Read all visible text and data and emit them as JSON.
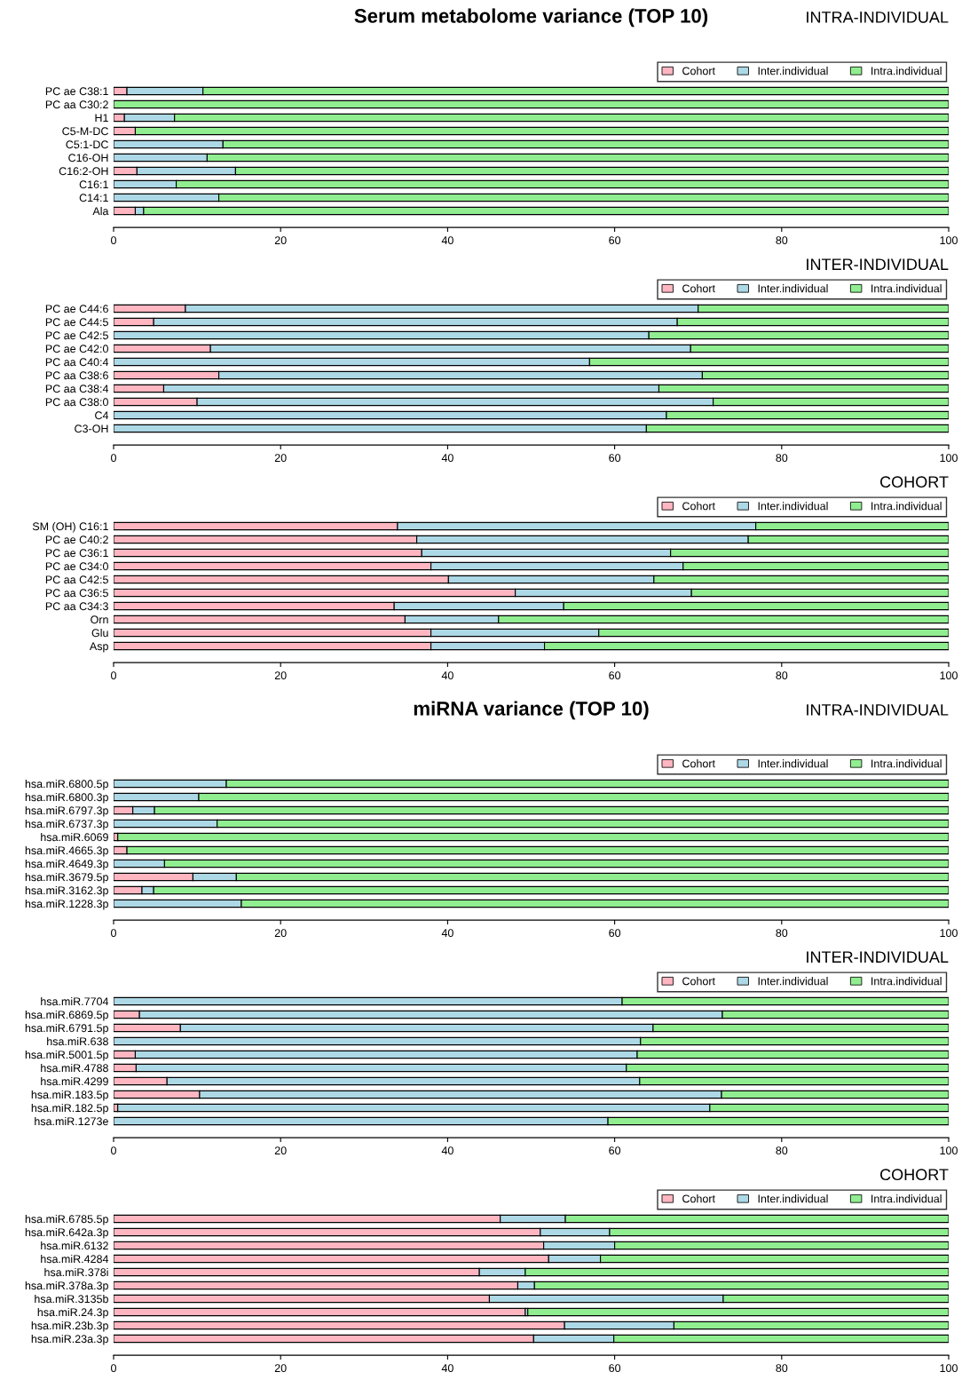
{
  "chart_data": [
    {
      "type": "bar",
      "title": "Serum metabolome variance (TOP 10)",
      "subtitle": "INTRA-INDIVIDUAL",
      "orientation": "horizontal",
      "stacked": true,
      "xlim": [
        0,
        100
      ],
      "xticks": [
        0,
        20,
        40,
        60,
        80,
        100
      ],
      "grid": false,
      "legend": "top right",
      "categories": [
        "PC ae C38:1",
        "PC aa C30:2",
        "H1",
        "C5-M-DC",
        "C5:1-DC",
        "C16-OH",
        "C16:2-OH",
        "C16:1",
        "C14:1",
        "Ala"
      ],
      "series": [
        {
          "name": "Cohort",
          "color": "#ffb6c1",
          "values": [
            1.6,
            0,
            1.3,
            2.6,
            0,
            0,
            2.8,
            0,
            0,
            2.6
          ]
        },
        {
          "name": "Inter.individual",
          "color": "#add8e6",
          "values": [
            9.1,
            0,
            6.0,
            0,
            13.1,
            11.2,
            11.8,
            7.5,
            12.6,
            1.0
          ]
        },
        {
          "name": "Intra.individual",
          "color": "#90ee90",
          "values": [
            89.3,
            100,
            92.7,
            97.4,
            86.9,
            88.8,
            85.4,
            92.5,
            87.4,
            96.4
          ]
        }
      ]
    },
    {
      "type": "bar",
      "subtitle": "INTER-INDIVIDUAL",
      "orientation": "horizontal",
      "stacked": true,
      "xlim": [
        0,
        100
      ],
      "xticks": [
        0,
        20,
        40,
        60,
        80,
        100
      ],
      "grid": false,
      "legend": "top right",
      "categories": [
        "PC ae C44:6",
        "PC ae C44:5",
        "PC ae C42:5",
        "PC ae C42:0",
        "PC aa C40:4",
        "PC aa C38:6",
        "PC aa C38:4",
        "PC aa C38:0",
        "C4",
        "C3-OH"
      ],
      "series": [
        {
          "name": "Cohort",
          "color": "#ffb6c1",
          "values": [
            8.6,
            4.8,
            0,
            11.6,
            0,
            12.6,
            6.0,
            10.0,
            0,
            0
          ]
        },
        {
          "name": "Inter.individual",
          "color": "#add8e6",
          "values": [
            61.4,
            62.7,
            64.1,
            57.5,
            57.0,
            57.9,
            59.3,
            61.8,
            66.2,
            63.8
          ]
        },
        {
          "name": "Intra.individual",
          "color": "#90ee90",
          "values": [
            30.0,
            32.5,
            35.9,
            30.9,
            43.0,
            29.5,
            34.7,
            28.2,
            33.8,
            36.2
          ]
        }
      ]
    },
    {
      "type": "bar",
      "subtitle": "COHORT",
      "orientation": "horizontal",
      "stacked": true,
      "xlim": [
        0,
        100
      ],
      "xticks": [
        0,
        20,
        40,
        60,
        80,
        100
      ],
      "grid": false,
      "legend": "top right",
      "categories": [
        "SM (OH) C16:1",
        "PC ae C40:2",
        "PC ae C36:1",
        "PC ae C34:0",
        "PC aa C42:5",
        "PC aa C36:5",
        "PC aa C34:3",
        "Orn",
        "Glu",
        "Asp"
      ],
      "series": [
        {
          "name": "Cohort",
          "color": "#ffb6c1",
          "values": [
            34.0,
            36.3,
            36.9,
            38.0,
            40.1,
            48.1,
            33.6,
            34.9,
            38.0,
            38.0
          ]
        },
        {
          "name": "Inter.individual",
          "color": "#add8e6",
          "values": [
            42.9,
            39.7,
            29.8,
            30.2,
            24.6,
            21.1,
            20.3,
            11.2,
            20.1,
            13.6
          ]
        },
        {
          "name": "Intra.individual",
          "color": "#90ee90",
          "values": [
            23.1,
            24.0,
            33.3,
            31.8,
            35.3,
            30.8,
            46.1,
            53.9,
            41.9,
            48.4
          ]
        }
      ]
    },
    {
      "type": "bar",
      "title": "miRNA variance (TOP 10)",
      "subtitle": "INTRA-INDIVIDUAL",
      "orientation": "horizontal",
      "stacked": true,
      "xlim": [
        0,
        100
      ],
      "xticks": [
        0,
        20,
        40,
        60,
        80,
        100
      ],
      "grid": false,
      "legend": "top right",
      "categories": [
        "hsa.miR.6800.5p",
        "hsa.miR.6800.3p",
        "hsa.miR.6797.3p",
        "hsa.miR.6737.3p",
        "hsa.miR.6069",
        "hsa.miR.4665.3p",
        "hsa.miR.4649.3p",
        "hsa.miR.3679.5p",
        "hsa.miR.3162.3p",
        "hsa.miR.1228.3p"
      ],
      "series": [
        {
          "name": "Cohort",
          "color": "#ffb6c1",
          "values": [
            0,
            0,
            2.3,
            0,
            0.5,
            1.6,
            0,
            9.5,
            3.4,
            0
          ]
        },
        {
          "name": "Inter.individual",
          "color": "#add8e6",
          "values": [
            13.5,
            10.2,
            2.6,
            12.4,
            0,
            0,
            6.1,
            5.2,
            1.4,
            15.3
          ]
        },
        {
          "name": "Intra.individual",
          "color": "#90ee90",
          "values": [
            86.5,
            89.8,
            95.1,
            87.6,
            99.5,
            98.4,
            93.9,
            85.3,
            95.2,
            84.7
          ]
        }
      ]
    },
    {
      "type": "bar",
      "subtitle": "INTER-INDIVIDUAL",
      "orientation": "horizontal",
      "stacked": true,
      "xlim": [
        0,
        100
      ],
      "xticks": [
        0,
        20,
        40,
        60,
        80,
        100
      ],
      "grid": false,
      "legend": "top right",
      "categories": [
        "hsa.miR.7704",
        "hsa.miR.6869.5p",
        "hsa.miR.6791.5p",
        "hsa.miR.638",
        "hsa.miR.5001.5p",
        "hsa.miR.4788",
        "hsa.miR.4299",
        "hsa.miR.183.5p",
        "hsa.miR.182.5p",
        "hsa.miR.1273e"
      ],
      "series": [
        {
          "name": "Cohort",
          "color": "#ffb6c1",
          "values": [
            0,
            3.1,
            8.0,
            0,
            2.6,
            2.7,
            6.4,
            10.3,
            0.5,
            0
          ]
        },
        {
          "name": "Inter.individual",
          "color": "#add8e6",
          "values": [
            60.9,
            69.8,
            56.6,
            63.1,
            60.1,
            58.7,
            56.6,
            62.5,
            70.9,
            59.2
          ]
        },
        {
          "name": "Intra.individual",
          "color": "#90ee90",
          "values": [
            39.1,
            27.1,
            35.4,
            36.9,
            37.3,
            38.6,
            37.0,
            27.2,
            28.6,
            40.8
          ]
        }
      ]
    },
    {
      "type": "bar",
      "subtitle": "COHORT",
      "orientation": "horizontal",
      "stacked": true,
      "xlim": [
        0,
        100
      ],
      "xticks": [
        0,
        20,
        40,
        60,
        80,
        100
      ],
      "grid": false,
      "legend": "top right",
      "categories": [
        "hsa.miR.6785.5p",
        "hsa.miR.642a.3p",
        "hsa.miR.6132",
        "hsa.miR.4284",
        "hsa.miR.378i",
        "hsa.miR.378a.3p",
        "hsa.miR.3135b",
        "hsa.miR.24.3p",
        "hsa.miR.23b.3p",
        "hsa.miR.23a.3p"
      ],
      "series": [
        {
          "name": "Cohort",
          "color": "#ffb6c1",
          "values": [
            46.3,
            51.1,
            51.5,
            52.1,
            43.8,
            48.4,
            45.0,
            49.3,
            54.0,
            50.3
          ]
        },
        {
          "name": "Inter.individual",
          "color": "#add8e6",
          "values": [
            7.8,
            8.3,
            8.5,
            6.2,
            5.5,
            2.0,
            28.0,
            0.3,
            13.1,
            9.6
          ]
        },
        {
          "name": "Intra.individual",
          "color": "#90ee90",
          "values": [
            45.9,
            40.6,
            40.0,
            41.7,
            50.7,
            49.6,
            27.0,
            50.4,
            32.9,
            40.1
          ]
        }
      ]
    }
  ]
}
